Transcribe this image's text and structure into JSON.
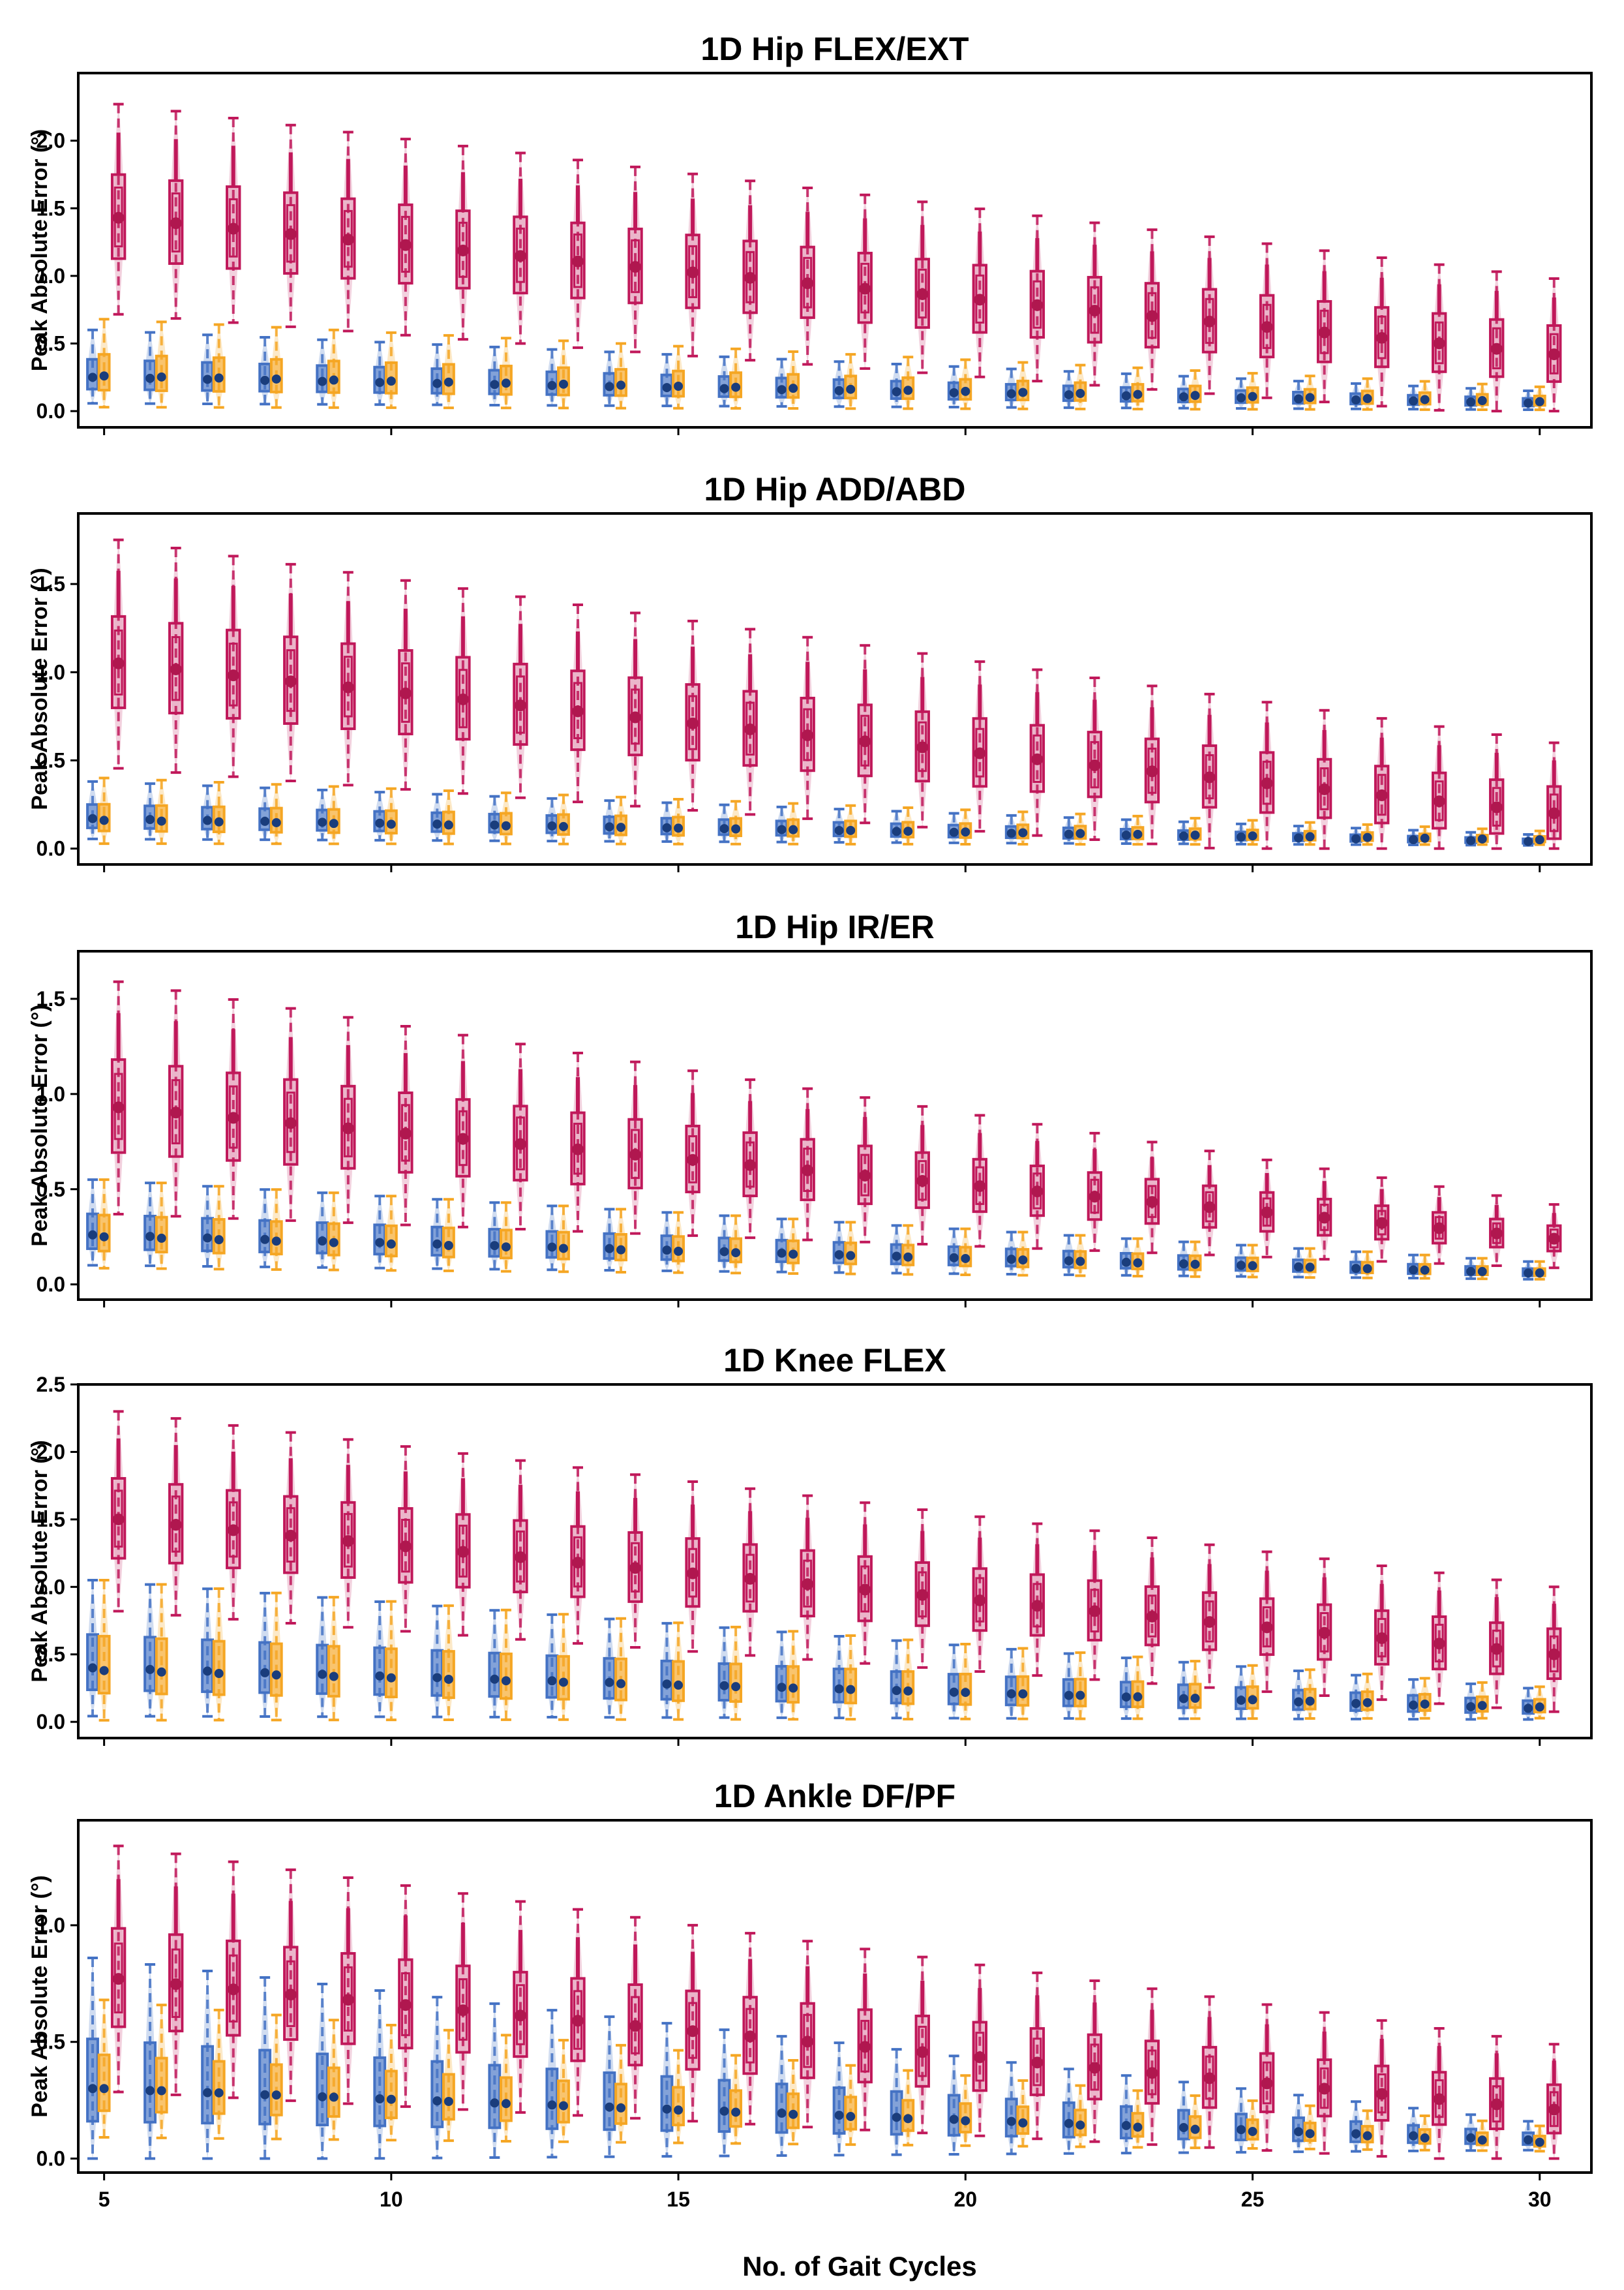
{
  "figure": {
    "xlabel": "No. of Gait Cycles",
    "x_ticks": [
      "5",
      "10",
      "15",
      "20",
      "25",
      "30"
    ],
    "series_colors": {
      "blue": "#4472c4",
      "orange": "#f5a623",
      "crimson": "#c0185a"
    }
  },
  "chart_data": [
    {
      "type": "box",
      "title": "1D Hip FLEX/EXT",
      "ylabel": "Peak Absolute Error (°)",
      "ylim": [
        -0.12,
        2.5
      ],
      "yticks": [
        "0.0",
        "0.5",
        "1.0",
        "1.5",
        "2.0"
      ],
      "ytick_values": [
        0,
        0.5,
        1.0,
        1.5,
        2.0
      ],
      "x": [
        5,
        6,
        7,
        8,
        9,
        10,
        11,
        12,
        13,
        14,
        15,
        16,
        17,
        18,
        19,
        20,
        21,
        22,
        23,
        24,
        25,
        26,
        27,
        28,
        29,
        30
      ],
      "series": [
        {
          "name": "blue",
          "median_start": 0.25,
          "median_end": 0.06,
          "whisker_start": 0.6,
          "whisker_end": 0.15
        },
        {
          "name": "orange",
          "median_start": 0.26,
          "median_end": 0.07,
          "whisker_start": 0.68,
          "whisker_end": 0.18
        },
        {
          "name": "crimson",
          "median_start": 1.43,
          "median_end": 0.42,
          "whisker_start": 2.27,
          "whisker_end": 0.98
        }
      ]
    },
    {
      "type": "box",
      "title": "1D Hip ADD/ABD",
      "ylabel": "Peak Absolute Error (°)",
      "ylim": [
        -0.09,
        1.9
      ],
      "yticks": [
        "0.0",
        "0.5",
        "1.0",
        "1.5"
      ],
      "ytick_values": [
        0,
        0.5,
        1.0,
        1.5
      ],
      "x": [
        5,
        6,
        7,
        8,
        9,
        10,
        11,
        12,
        13,
        14,
        15,
        16,
        17,
        18,
        19,
        20,
        21,
        22,
        23,
        24,
        25,
        26,
        27,
        28,
        29,
        30
      ],
      "series": [
        {
          "name": "blue",
          "median_start": 0.17,
          "median_end": 0.04,
          "whisker_start": 0.38,
          "whisker_end": 0.08
        },
        {
          "name": "orange",
          "median_start": 0.16,
          "median_end": 0.05,
          "whisker_start": 0.4,
          "whisker_end": 0.1
        },
        {
          "name": "crimson",
          "median_start": 1.05,
          "median_end": 0.2,
          "whisker_start": 1.75,
          "whisker_end": 0.6
        }
      ]
    },
    {
      "type": "box",
      "title": "1D Hip IR/ER",
      "ylabel": "Peak Absolute Error (°)",
      "ylim": [
        -0.08,
        1.75
      ],
      "yticks": [
        "0.0",
        "0.5",
        "1.0",
        "1.5"
      ],
      "ytick_values": [
        0,
        0.5,
        1.0,
        1.5
      ],
      "x": [
        5,
        6,
        7,
        8,
        9,
        10,
        11,
        12,
        13,
        14,
        15,
        16,
        17,
        18,
        19,
        20,
        21,
        22,
        23,
        24,
        25,
        26,
        27,
        28,
        29,
        30
      ],
      "series": [
        {
          "name": "blue",
          "median_start": 0.26,
          "median_end": 0.06,
          "whisker_start": 0.55,
          "whisker_end": 0.12
        },
        {
          "name": "orange",
          "median_start": 0.25,
          "median_end": 0.06,
          "whisker_start": 0.55,
          "whisker_end": 0.12
        },
        {
          "name": "crimson",
          "median_start": 0.93,
          "median_end": 0.24,
          "whisker_start": 1.59,
          "whisker_end": 0.42
        }
      ]
    },
    {
      "type": "box",
      "title": "1D Knee FLEX",
      "ylabel": "Peak Absolute Error (°)",
      "ylim": [
        -0.12,
        2.5
      ],
      "yticks": [
        "0.0",
        "0.5",
        "1.0",
        "1.5",
        "2.0",
        "2.5"
      ],
      "ytick_values": [
        0,
        0.5,
        1.0,
        1.5,
        2.0,
        2.5
      ],
      "x": [
        5,
        6,
        7,
        8,
        9,
        10,
        11,
        12,
        13,
        14,
        15,
        16,
        17,
        18,
        19,
        20,
        21,
        22,
        23,
        24,
        25,
        26,
        27,
        28,
        29,
        30
      ],
      "series": [
        {
          "name": "blue",
          "median_start": 0.4,
          "median_end": 0.1,
          "whisker_start": 1.05,
          "whisker_end": 0.25
        },
        {
          "name": "orange",
          "median_start": 0.38,
          "median_end": 0.11,
          "whisker_start": 1.05,
          "whisker_end": 0.26
        },
        {
          "name": "crimson",
          "median_start": 1.5,
          "median_end": 0.5,
          "whisker_start": 2.3,
          "whisker_end": 1.0
        }
      ]
    },
    {
      "type": "box",
      "title": "1D Ankle DF/PF",
      "ylabel": "Peak Absolute Error (°)",
      "ylim": [
        -0.06,
        1.45
      ],
      "yticks": [
        "0.0",
        "0.5",
        "1.0"
      ],
      "ytick_values": [
        0,
        0.5,
        1.0
      ],
      "x": [
        5,
        6,
        7,
        8,
        9,
        10,
        11,
        12,
        13,
        14,
        15,
        16,
        17,
        18,
        19,
        20,
        21,
        22,
        23,
        24,
        25,
        26,
        27,
        28,
        29,
        30
      ],
      "series": [
        {
          "name": "blue",
          "median_start": 0.3,
          "median_end": 0.08,
          "whisker_start": 0.86,
          "whisker_end": 0.16
        },
        {
          "name": "orange",
          "median_start": 0.3,
          "median_end": 0.07,
          "whisker_start": 0.68,
          "whisker_end": 0.14
        },
        {
          "name": "crimson",
          "median_start": 0.77,
          "median_end": 0.21,
          "whisker_start": 1.34,
          "whisker_end": 0.49
        }
      ]
    }
  ]
}
